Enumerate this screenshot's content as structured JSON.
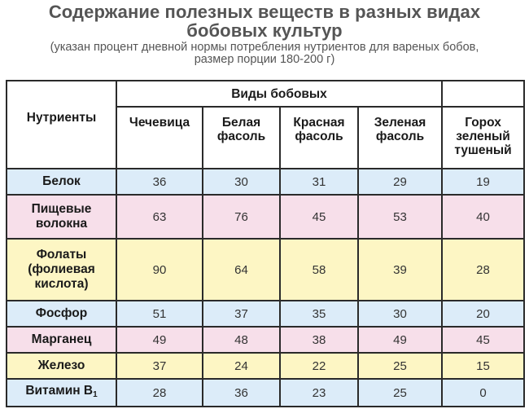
{
  "header": {
    "title_line1": "Содержание полезных веществ в разных видах",
    "title_line2": "бобовых культур",
    "subtitle_line1": "(указан процент дневной нормы потребления нутриентов для вареных бобов,",
    "subtitle_line2": "размер порции 180-200 г)"
  },
  "table": {
    "nutrients_header": "Нутриенты",
    "group_header": "Виды бобовых",
    "columns": [
      {
        "line1": "Чечевица",
        "line2": "",
        "line3": ""
      },
      {
        "line1": "Белая",
        "line2": "фасоль",
        "line3": ""
      },
      {
        "line1": "Красная",
        "line2": "фасоль",
        "line3": ""
      },
      {
        "line1": "Зеленая",
        "line2": "фасоль",
        "line3": ""
      },
      {
        "line1": "Горох",
        "line2": "зеленый",
        "line3": "тушеный"
      }
    ],
    "rows": [
      {
        "name_lines": [
          "Белок"
        ],
        "values": [
          "36",
          "30",
          "31",
          "29",
          "19"
        ],
        "color": "#dcecf9"
      },
      {
        "name_lines": [
          "Пищевые",
          "волокна"
        ],
        "values": [
          "63",
          "76",
          "45",
          "53",
          "40"
        ],
        "color": "#f7dfea"
      },
      {
        "name_lines": [
          "Фолаты",
          "(фолиевая",
          "кислота)"
        ],
        "values": [
          "90",
          "64",
          "58",
          "39",
          "28"
        ],
        "color": "#fdf6c4"
      },
      {
        "name_lines": [
          "Фосфор"
        ],
        "values": [
          "51",
          "37",
          "35",
          "30",
          "20"
        ],
        "color": "#dcecf9"
      },
      {
        "name_lines": [
          "Марганец"
        ],
        "values": [
          "49",
          "48",
          "38",
          "49",
          "45"
        ],
        "color": "#f7dfea"
      },
      {
        "name_lines": [
          "Железо"
        ],
        "values": [
          "37",
          "24",
          "22",
          "25",
          "15"
        ],
        "color": "#fdf6c4"
      },
      {
        "name_lines": [
          "Витамин В"
        ],
        "name_sub": "1",
        "values": [
          "28",
          "36",
          "23",
          "25",
          "0"
        ],
        "color": "#dcecf9"
      }
    ]
  }
}
